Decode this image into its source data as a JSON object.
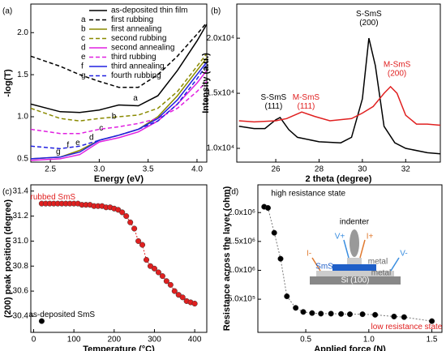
{
  "chart_data": [
    {
      "type": "line",
      "panel_label": "(a)",
      "x_label": "Energy (eV)",
      "y_label": "-log(T)",
      "xlim": [
        2.3,
        4.1
      ],
      "xticks": [
        2.5,
        {
          "value": 3,
          "label": "3.0"
        },
        3.5,
        {
          "value": 4,
          "label": "4.0"
        }
      ],
      "ylim": [
        0.46,
        2.34
      ],
      "yticks": [
        0.5,
        {
          "value": 1,
          "label": "1.0"
        },
        1.5,
        {
          "value": 2,
          "label": "2.0"
        }
      ],
      "x": [
        2.3,
        2.6,
        2.8,
        3.0,
        3.2,
        3.4,
        3.6,
        3.8,
        4.0,
        4.1
      ],
      "series": [
        {
          "name": "as-deposited thin film",
          "color": "#000000",
          "dash": false,
          "values": [
            1.15,
            1.06,
            1.05,
            1.08,
            1.14,
            1.13,
            1.25,
            1.55,
            1.9,
            2.1
          ]
        },
        {
          "tag": "a",
          "name": "first rubbing",
          "color": "#000000",
          "dash": true,
          "values": [
            1.72,
            1.6,
            1.5,
            1.42,
            1.35,
            1.35,
            1.5,
            1.72,
            1.98,
            2.12
          ]
        },
        {
          "tag": "b",
          "name": "first annealing",
          "color": "#8a8a00",
          "dash": false,
          "values": [
            0.5,
            0.52,
            0.6,
            0.72,
            0.78,
            0.85,
            1.0,
            1.25,
            1.55,
            1.7
          ]
        },
        {
          "tag": "c",
          "name": "second rubbing",
          "color": "#8a8a00",
          "dash": true,
          "values": [
            1.1,
            0.98,
            0.95,
            0.98,
            1.0,
            1.02,
            1.1,
            1.3,
            1.6,
            1.75
          ]
        },
        {
          "tag": "d",
          "name": "second annealing",
          "color": "#e020e0",
          "dash": false,
          "values": [
            0.48,
            0.5,
            0.55,
            0.7,
            0.75,
            0.82,
            0.95,
            1.15,
            1.4,
            1.55
          ]
        },
        {
          "tag": "e",
          "name": "third rubbing",
          "color": "#e020e0",
          "dash": true,
          "values": [
            0.85,
            0.8,
            0.8,
            0.85,
            0.88,
            0.92,
            0.98,
            1.1,
            1.3,
            1.42
          ]
        },
        {
          "tag": "f",
          "name": "third annealing",
          "color": "#2020e0",
          "dash": false,
          "values": [
            0.5,
            0.52,
            0.58,
            0.72,
            0.78,
            0.85,
            0.98,
            1.2,
            1.5,
            1.65
          ]
        },
        {
          "tag": "g",
          "name": "fourth rubbing",
          "color": "#2020e0",
          "dash": true,
          "values": [
            0.65,
            0.62,
            0.65,
            0.72,
            0.78,
            0.85,
            0.95,
            1.15,
            1.45,
            1.62
          ]
        }
      ],
      "annotations": [
        {
          "lines": [
            "a"
          ],
          "x": 3.37,
          "y": 1.22,
          "color": "#000000"
        },
        {
          "lines": [
            "b"
          ],
          "x": 3.15,
          "y": 1.0,
          "color": "#000000"
        },
        {
          "lines": [
            "c"
          ],
          "x": 3.02,
          "y": 0.86,
          "color": "#000000"
        },
        {
          "lines": [
            "d"
          ],
          "x": 2.92,
          "y": 0.75,
          "color": "#000000"
        },
        {
          "lines": [
            "e"
          ],
          "x": 2.78,
          "y": 0.69,
          "color": "#000000"
        },
        {
          "lines": [
            "f"
          ],
          "x": 2.68,
          "y": 0.66,
          "color": "#000000"
        },
        {
          "lines": [
            "g"
          ],
          "x": 2.58,
          "y": 0.58,
          "color": "#000000"
        }
      ]
    },
    {
      "type": "line",
      "panel_label": "(b)",
      "x_label": "2 theta (degree)",
      "y_label": "Intensity (a.u.)",
      "xlim": [
        24.2,
        33.6
      ],
      "xticks": [
        26,
        28,
        30,
        32
      ],
      "ylim": [
        8750,
        23100
      ],
      "yticks": [
        {
          "value": 10000,
          "label": "1.0x10⁴"
        },
        {
          "value": 15000,
          "label": "1.5x10⁴"
        },
        {
          "value": 20000,
          "label": "2.0x10⁴"
        }
      ],
      "series": [
        {
          "name": "S-SmS",
          "color": "#000000",
          "dash": false,
          "x": [
            24.3,
            25,
            25.5,
            26,
            26.2,
            26.6,
            27,
            28,
            29,
            29.5,
            30,
            30.3,
            30.6,
            31,
            31.5,
            32,
            33,
            33.6
          ],
          "values": [
            12000,
            11800,
            11800,
            12600,
            12800,
            11700,
            11000,
            10600,
            10500,
            11000,
            14500,
            20000,
            17500,
            12000,
            10500,
            10000,
            9600,
            9500
          ]
        },
        {
          "name": "M-SmS",
          "color": "#e02020",
          "dash": false,
          "x": [
            24.3,
            25,
            26,
            26.5,
            27.2,
            27.8,
            28.5,
            29.5,
            30,
            30.5,
            31,
            31.3,
            31.6,
            32,
            32.5,
            33,
            33.6
          ],
          "values": [
            12500,
            12400,
            12500,
            12700,
            13300,
            12900,
            12500,
            12700,
            13200,
            13800,
            15000,
            15600,
            15000,
            13000,
            12200,
            12200,
            12100
          ]
        }
      ],
      "annotations": [
        {
          "lines": [
            "S-SmS",
            "(111)"
          ],
          "x": 25.9,
          "y": 14200,
          "color": "#000000"
        },
        {
          "lines": [
            "M-SmS",
            "(111)"
          ],
          "x": 27.4,
          "y": 14200,
          "color": "#e02020"
        },
        {
          "lines": [
            "S-SmS",
            "(200)"
          ],
          "x": 30.3,
          "y": 21800,
          "color": "#000000"
        },
        {
          "lines": [
            "M-SmS",
            "(200)"
          ],
          "x": 31.6,
          "y": 17200,
          "color": "#e02020"
        }
      ]
    },
    {
      "type": "line",
      "panel_label": "(c)",
      "x_label": "Temperature (°C)",
      "y_label": "(200) peak position (degree)",
      "xlim": [
        -7,
        430
      ],
      "xticks": [
        0,
        100,
        200,
        300,
        400
      ],
      "ylim": [
        30.27,
        31.45
      ],
      "yticks": [
        30.4,
        30.6,
        30.8,
        {
          "value": 31,
          "label": "31.0"
        },
        31.2,
        31.4
      ],
      "series": [
        {
          "name": "rubbed SmS",
          "color": "#e02020",
          "dash": true,
          "marker": true,
          "x": [
            20,
            30,
            40,
            50,
            60,
            70,
            80,
            90,
            100,
            110,
            120,
            130,
            140,
            150,
            160,
            170,
            180,
            190,
            200,
            210,
            220,
            230,
            240,
            250,
            260,
            270,
            280,
            290,
            300,
            310,
            320,
            330,
            340,
            350,
            360,
            370,
            380,
            390,
            400
          ],
          "values": [
            31.3,
            31.3,
            31.3,
            31.3,
            31.3,
            31.3,
            31.3,
            31.3,
            31.3,
            31.3,
            31.29,
            31.29,
            31.29,
            31.28,
            31.28,
            31.28,
            31.27,
            31.27,
            31.26,
            31.25,
            31.23,
            31.2,
            31.15,
            31.1,
            31.0,
            30.97,
            30.85,
            30.8,
            30.78,
            30.75,
            30.72,
            30.68,
            30.65,
            30.6,
            30.57,
            30.55,
            30.52,
            30.51,
            30.5
          ]
        },
        {
          "name": "as-deposited SmS",
          "color": "#000000",
          "dash": false,
          "marker": true,
          "x": [
            20
          ],
          "values": [
            30.36
          ]
        }
      ],
      "annotations": [
        {
          "lines": [
            "rubbed SmS"
          ],
          "x": 48,
          "y": 31.35,
          "color": "#e02020"
        },
        {
          "lines": [
            "as-deposited SmS"
          ],
          "x": 70,
          "y": 30.41,
          "color": "#000000"
        }
      ]
    },
    {
      "type": "line",
      "panel_label": "(d)",
      "x_label": "Applied force (N)",
      "y_label": "Resistance across the layer (ohm)",
      "xlim": [
        0.12,
        1.58
      ],
      "xticks": [
        0.5,
        {
          "value": 1,
          "label": "1.0"
        },
        1.5
      ],
      "ylim": [
        -74000,
        2480000
      ],
      "yticks": [
        {
          "value": 500000,
          "label": "5.0x10⁵"
        },
        {
          "value": 1000000,
          "label": "1.0x10⁶"
        },
        {
          "value": 1500000,
          "label": "1.5x10⁶"
        },
        {
          "value": 2000000,
          "label": "2.0x10⁶"
        }
      ],
      "series": [
        {
          "name": "resistance",
          "color": "#000000",
          "dash": true,
          "marker": true,
          "x": [
            0.17,
            0.2,
            0.25,
            0.3,
            0.35,
            0.42,
            0.48,
            0.55,
            0.62,
            0.7,
            0.78,
            0.85,
            0.95,
            1.05,
            1.2,
            1.28,
            1.5
          ],
          "values": [
            2100000,
            2080000,
            1650000,
            1200000,
            550000,
            350000,
            280000,
            260000,
            250000,
            250000,
            245000,
            240000,
            240000,
            230000,
            200000,
            190000,
            120000
          ]
        }
      ],
      "annotations": [
        {
          "lines": [
            "high resistance state"
          ],
          "x": 0.52,
          "y": 2330000,
          "color": "#000000"
        },
        {
          "lines": [
            "low resistance state"
          ],
          "x": 1.3,
          "y": 20000,
          "color": "#e02020"
        }
      ],
      "inset_labels": [
        "indenter",
        "V+",
        "I+",
        "I-",
        "SmS",
        "metal",
        "V-",
        "metal",
        "Si (100)"
      ]
    }
  ]
}
